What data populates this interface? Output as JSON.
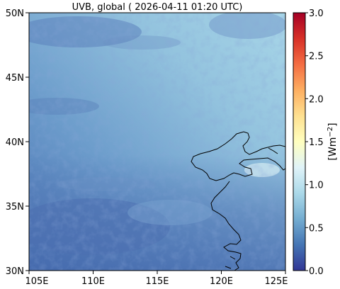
{
  "title": "UVB, global ( 2026-04-11 01:20 UTC)",
  "map": {
    "lat_ticks": [
      "50N",
      "45N",
      "40N",
      "35N",
      "30N"
    ],
    "lon_ticks": [
      "105E",
      "110E",
      "115E",
      "120E",
      "125E"
    ],
    "lon_range": [
      105,
      125
    ],
    "lat_range": [
      30,
      50
    ]
  },
  "colorbar": {
    "label": "[Wm",
    "label_sup": "−2",
    "label_end": "]",
    "ticks": [
      "3.0",
      "2.5",
      "2.0",
      "1.5",
      "1.0",
      "0.5",
      "0.0"
    ],
    "range": [
      0.0,
      3.0
    ],
    "colormap": "RdYlBu_r",
    "colors": [
      "#313695",
      "#4575b4",
      "#74add1",
      "#abd9e9",
      "#e0f3f8",
      "#ffffbf",
      "#fee090",
      "#fdae61",
      "#f46d43",
      "#d73027",
      "#a50026"
    ]
  }
}
